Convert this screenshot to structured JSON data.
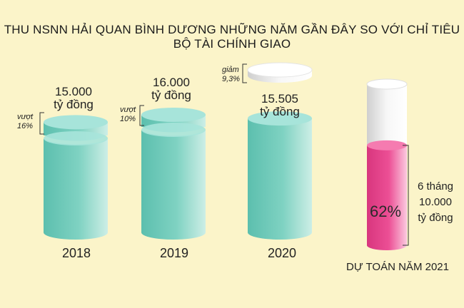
{
  "title": "THU NSNN HẢI QUAN BÌNH DƯƠNG NHỮNG NĂM GẦN ĐÂY SO VỚI CHỈ TIÊU BỘ TÀI CHÍNH GIAO",
  "colors": {
    "background": "#fbf4c9",
    "cylinder_teal": "#7fd2c2",
    "cylinder_top": "#a7e4da",
    "cylinder_pink": "#ec4f95",
    "cylinder_white": "#f2f2f2",
    "bracket": "#333333"
  },
  "chart_data": {
    "type": "bar",
    "categories": [
      "2018",
      "2019",
      "2020"
    ],
    "values": [
      15000,
      16000,
      15505
    ],
    "value_labels": [
      "15.000",
      "16.000",
      "15.505"
    ],
    "unit_label": "tỷ đồng",
    "changes": [
      {
        "category": "2018",
        "word": "vượt",
        "percent": "16%"
      },
      {
        "category": "2019",
        "word": "vượt",
        "percent": "10%"
      },
      {
        "category": "2020",
        "word": "giảm",
        "percent": "9,3%"
      }
    ],
    "budget_2021": {
      "label": "DỰ TOÁN NĂM 2021",
      "progress_percent": 62,
      "progress_label": "62%",
      "period": "6 tháng",
      "amount": "10.000",
      "unit": "tỷ đồng"
    }
  }
}
